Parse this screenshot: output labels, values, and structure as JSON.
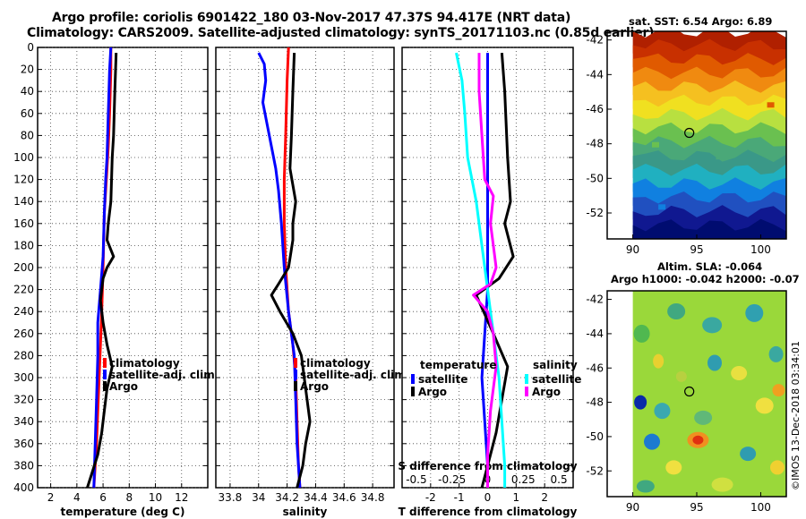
{
  "header": {
    "title_line1": "Argo profile: coriolis 6901422_180 03-Nov-2017 47.37S 94.417E (NRT data)",
    "title_line2": "Climatology: CARS2009. Satellite-adjusted climatology: synTS_20171103.nc (0.85d earlier)"
  },
  "right_titles": {
    "sst": "sat. SST: 6.54 Argo: 6.89",
    "sla1": "Altim. SLA: -0.064",
    "sla2": "Argo h1000: -0.042 h2000: -0.07"
  },
  "credit": "©IMOS 13-Dec-2018 03:34:01",
  "colors": {
    "red": "#ff0000",
    "blue": "#0000ff",
    "black": "#000000",
    "cyan": "#00ffff",
    "magenta": "#ff00ff",
    "grid": "#444444"
  },
  "chart_data": [
    {
      "id": "temp",
      "type": "line",
      "xlabel": "temperature (deg C)",
      "ylabel": "",
      "xlim": [
        1,
        14
      ],
      "ylim": [
        400,
        0
      ],
      "xticks": [
        2,
        4,
        6,
        8,
        10,
        12
      ],
      "xtick_labels": [
        "2",
        "4",
        "6",
        "8",
        "10",
        "12"
      ],
      "yticks": [
        0,
        20,
        40,
        60,
        80,
        100,
        120,
        140,
        160,
        180,
        200,
        220,
        240,
        260,
        280,
        300,
        320,
        340,
        360,
        380,
        400
      ],
      "ytick_labels": [
        "0",
        "20",
        "40",
        "60",
        "80",
        "100",
        "120",
        "140",
        "160",
        "180",
        "200",
        "220",
        "240",
        "260",
        "280",
        "300",
        "320",
        "340",
        "360",
        "380",
        "400"
      ],
      "legend": {
        "entries": [
          "climatology",
          "satellite-adj. clim.",
          "Argo"
        ],
        "colors": [
          "red",
          "blue",
          "black"
        ]
      },
      "series": [
        {
          "name": "climatology",
          "color": "red",
          "points": [
            [
              6.6,
              0
            ],
            [
              6.6,
              20
            ],
            [
              6.5,
              60
            ],
            [
              6.4,
              90
            ],
            [
              6.3,
              110
            ],
            [
              6.1,
              150
            ],
            [
              6.0,
              200
            ],
            [
              5.9,
              240
            ],
            [
              5.8,
              270
            ],
            [
              5.7,
              300
            ],
            [
              5.6,
              330
            ],
            [
              5.5,
              360
            ],
            [
              5.3,
              400
            ]
          ]
        },
        {
          "name": "satellite-adj. clim.",
          "color": "blue",
          "points": [
            [
              6.6,
              0
            ],
            [
              6.5,
              20
            ],
            [
              6.4,
              60
            ],
            [
              6.3,
              100
            ],
            [
              6.2,
              120
            ],
            [
              6.1,
              150
            ],
            [
              6.0,
              190
            ],
            [
              5.8,
              220
            ],
            [
              5.6,
              250
            ],
            [
              5.6,
              280
            ],
            [
              5.5,
              320
            ],
            [
              5.4,
              360
            ],
            [
              5.3,
              400
            ]
          ]
        },
        {
          "name": "Argo",
          "color": "black",
          "points": [
            [
              7.0,
              5
            ],
            [
              6.9,
              40
            ],
            [
              6.8,
              80
            ],
            [
              6.7,
              100
            ],
            [
              6.6,
              140
            ],
            [
              6.4,
              160
            ],
            [
              6.3,
              175
            ],
            [
              6.8,
              190
            ],
            [
              6.3,
              200
            ],
            [
              6.0,
              210
            ],
            [
              5.9,
              220
            ],
            [
              5.8,
              230
            ],
            [
              6.0,
              250
            ],
            [
              6.3,
              270
            ],
            [
              6.7,
              290
            ],
            [
              6.3,
              310
            ],
            [
              6.1,
              330
            ],
            [
              5.9,
              350
            ],
            [
              5.6,
              370
            ],
            [
              5.2,
              385
            ],
            [
              4.8,
              400
            ]
          ]
        }
      ]
    },
    {
      "id": "salt",
      "type": "line",
      "xlabel": "salinity",
      "ylabel": "",
      "xlim": [
        33.7,
        34.95
      ],
      "ylim": [
        400,
        0
      ],
      "xticks": [
        33.8,
        34,
        34.2,
        34.4,
        34.6,
        34.8
      ],
      "xtick_labels": [
        "33.8",
        "34",
        "34.2",
        "34.4",
        "34.6",
        "34.8"
      ],
      "legend": {
        "entries": [
          "climatology",
          "satellite-adj. clim.",
          "Argo"
        ],
        "colors": [
          "red",
          "blue",
          "black"
        ]
      },
      "series": [
        {
          "name": "climatology",
          "color": "red",
          "points": [
            [
              34.21,
              0
            ],
            [
              34.2,
              30
            ],
            [
              34.19,
              80
            ],
            [
              34.18,
              120
            ],
            [
              34.18,
              160
            ],
            [
              34.19,
              200
            ],
            [
              34.21,
              240
            ],
            [
              34.24,
              270
            ],
            [
              34.26,
              300
            ],
            [
              34.27,
              340
            ],
            [
              34.28,
              380
            ],
            [
              34.29,
              400
            ]
          ]
        },
        {
          "name": "satellite-adj. clim.",
          "color": "blue",
          "points": [
            [
              34.0,
              5
            ],
            [
              34.04,
              15
            ],
            [
              34.05,
              30
            ],
            [
              34.03,
              50
            ],
            [
              34.06,
              70
            ],
            [
              34.09,
              90
            ],
            [
              34.12,
              110
            ],
            [
              34.14,
              130
            ],
            [
              34.16,
              160
            ],
            [
              34.18,
              200
            ],
            [
              34.21,
              240
            ],
            [
              34.25,
              280
            ],
            [
              34.26,
              320
            ],
            [
              34.27,
              360
            ],
            [
              34.29,
              400
            ]
          ]
        },
        {
          "name": "Argo",
          "color": "black",
          "points": [
            [
              34.25,
              5
            ],
            [
              34.24,
              40
            ],
            [
              34.23,
              80
            ],
            [
              34.22,
              110
            ],
            [
              34.24,
              125
            ],
            [
              34.26,
              140
            ],
            [
              34.24,
              160
            ],
            [
              34.24,
              175
            ],
            [
              34.21,
              200
            ],
            [
              34.14,
              215
            ],
            [
              34.09,
              225
            ],
            [
              34.15,
              240
            ],
            [
              34.24,
              260
            ],
            [
              34.3,
              280
            ],
            [
              34.32,
              300
            ],
            [
              34.34,
              320
            ],
            [
              34.36,
              340
            ],
            [
              34.33,
              360
            ],
            [
              34.31,
              380
            ],
            [
              34.27,
              400
            ]
          ]
        }
      ]
    },
    {
      "id": "diff",
      "type": "line",
      "xlabel": "T difference from climatology",
      "top_axis_label": "S difference from climatology",
      "xlim": [
        -3,
        3
      ],
      "ylim": [
        400,
        0
      ],
      "xticks": [
        -2,
        -1,
        0,
        1,
        2
      ],
      "xtick_labels": [
        "-2",
        "-1",
        "0",
        "1",
        "2"
      ],
      "top_xticks": [
        -2.5,
        -1.25,
        0,
        1.25,
        2.5
      ],
      "top_xtick_labels": [
        "-0.5",
        "-0.25",
        "0",
        "0.25",
        "0.5"
      ],
      "legend": {
        "temperature_title": "temperature",
        "salinity_title": "salinity",
        "temperature_entries": [
          "satellite",
          "Argo"
        ],
        "salinity_entries": [
          "satellite",
          "Argo"
        ]
      },
      "series": [
        {
          "name": "T satellite",
          "color": "blue",
          "points": [
            [
              0.0,
              5
            ],
            [
              0.0,
              60
            ],
            [
              0.0,
              120
            ],
            [
              0.0,
              180
            ],
            [
              0.0,
              220
            ],
            [
              -0.1,
              260
            ],
            [
              -0.2,
              300
            ],
            [
              -0.1,
              340
            ],
            [
              0.0,
              380
            ],
            [
              0.0,
              400
            ]
          ]
        },
        {
          "name": "T Argo",
          "color": "black",
          "points": [
            [
              0.5,
              5
            ],
            [
              0.6,
              40
            ],
            [
              0.7,
              100
            ],
            [
              0.8,
              140
            ],
            [
              0.6,
              160
            ],
            [
              0.9,
              190
            ],
            [
              0.4,
              210
            ],
            [
              -0.4,
              225
            ],
            [
              0.2,
              260
            ],
            [
              0.7,
              290
            ],
            [
              0.5,
              320
            ],
            [
              0.3,
              350
            ],
            [
              0.0,
              380
            ],
            [
              -0.2,
              400
            ]
          ]
        },
        {
          "name": "S satellite",
          "color": "cyan",
          "points": [
            [
              -1.1,
              5
            ],
            [
              -0.9,
              30
            ],
            [
              -0.8,
              60
            ],
            [
              -0.7,
              100
            ],
            [
              -0.4,
              140
            ],
            [
              -0.2,
              180
            ],
            [
              0.0,
              220
            ],
            [
              0.2,
              260
            ],
            [
              0.4,
              300
            ],
            [
              0.5,
              340
            ],
            [
              0.6,
              380
            ],
            [
              0.6,
              400
            ]
          ]
        },
        {
          "name": "S Argo",
          "color": "magenta",
          "points": [
            [
              -0.3,
              5
            ],
            [
              -0.3,
              40
            ],
            [
              -0.2,
              80
            ],
            [
              -0.1,
              120
            ],
            [
              0.2,
              135
            ],
            [
              0.1,
              160
            ],
            [
              0.2,
              180
            ],
            [
              0.3,
              200
            ],
            [
              0.1,
              215
            ],
            [
              -0.5,
              225
            ],
            [
              0.0,
              240
            ],
            [
              0.2,
              260
            ],
            [
              0.3,
              290
            ],
            [
              0.1,
              330
            ],
            [
              0.0,
              370
            ],
            [
              0.0,
              400
            ]
          ]
        }
      ]
    },
    {
      "id": "sst-map",
      "type": "heatmap",
      "title": "sat. SST: 6.54 Argo: 6.89",
      "xlim": [
        88,
        102
      ],
      "ylim": [
        -53.5,
        -41.5
      ],
      "xticks": [
        90,
        95,
        100
      ],
      "xtick_labels": [
        "90",
        "95",
        "100"
      ],
      "yticks": [
        -42,
        -44,
        -46,
        -48,
        -50,
        -52
      ],
      "ytick_labels": [
        "-42",
        "-44",
        "-46",
        "-48",
        "-50",
        "-52"
      ],
      "data_x_range": [
        90,
        102
      ],
      "marker": [
        94.417,
        -47.37
      ],
      "row_colors": [
        "#b02000",
        "#c83000",
        "#e05a00",
        "#f08a10",
        "#f5c020",
        "#f0e020",
        "#b8e040",
        "#6ac050",
        "#4aa878",
        "#3a9888",
        "#20b0c0",
        "#1080e0",
        "#2050c0",
        "#101890",
        "#000c70"
      ]
    },
    {
      "id": "sla-map",
      "type": "heatmap",
      "title": "Altim. SLA: -0.064",
      "xlim": [
        88,
        102
      ],
      "ylim": [
        -53.5,
        -41.5
      ],
      "xticks": [
        90,
        95,
        100
      ],
      "xtick_labels": [
        "90",
        "95",
        "100"
      ],
      "yticks": [
        -42,
        -44,
        -46,
        -48,
        -50,
        -52
      ],
      "ytick_labels": [
        "-42",
        "-44",
        "-46",
        "-48",
        "-50",
        "-52"
      ],
      "data_x_range": [
        90,
        102
      ],
      "marker": [
        94.417,
        -47.37
      ],
      "background": "#9ad83a"
    }
  ]
}
